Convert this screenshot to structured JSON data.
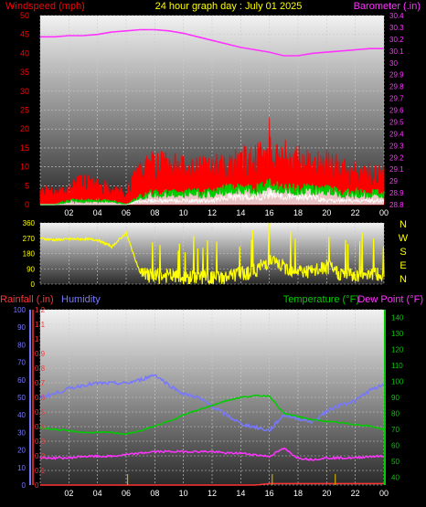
{
  "header": {
    "left": "Windspeed (mph)",
    "center": "24 hour graph day : July 01 2025",
    "right": "Barometer (.in)"
  },
  "colors": {
    "wind": "#ff0000",
    "gust_fill": "#e8e8e8",
    "wind_avg": "#00cc00",
    "barometer": "#ff33ff",
    "direction": "#ffff00",
    "humidity": "#7777ff",
    "temperature": "#00cc00",
    "dewpoint": "#ff33ff",
    "rainfall": "#ff3333",
    "rain_ticks": "#ccaa00",
    "grid": "#cccccc"
  },
  "bottom_labels": {
    "rainfall": "Rainfall (.in)",
    "humidity": "Humidity",
    "temperature": "Temperature (°F)",
    "dewpoint": "Dew Point (°F)"
  },
  "compass": [
    "N",
    "W",
    "S",
    "E",
    "N"
  ],
  "x_ticks": [
    "02",
    "04",
    "06",
    "08",
    "10",
    "12",
    "14",
    "16",
    "18",
    "20",
    "22",
    "00"
  ],
  "chart_data": [
    {
      "type": "area",
      "title": "24 hour graph day : July 01 2025",
      "ylabel": "Windspeed (mph)",
      "y2label": "Barometer (.in)",
      "ylim": [
        0,
        50
      ],
      "y_ticks": [
        "0",
        "5",
        "10",
        "15",
        "20",
        "25",
        "30",
        "35",
        "40",
        "45",
        "50"
      ],
      "y2lim": [
        28.8,
        30.4
      ],
      "y2_ticks": [
        "28.8",
        "28.9",
        "29",
        "29.1",
        "29.2",
        "29.3",
        "29.4",
        "29.5",
        "29.6",
        "29.7",
        "29.8",
        "29.9",
        "30",
        "30.1",
        "30.2",
        "30.3",
        "30.4"
      ],
      "x": [
        0,
        1,
        2,
        3,
        4,
        5,
        6,
        7,
        8,
        9,
        10,
        11,
        12,
        13,
        14,
        15,
        16,
        17,
        18,
        19,
        20,
        21,
        22,
        23,
        24
      ],
      "series": [
        {
          "values": [
            4,
            3,
            4,
            6,
            5,
            4,
            3,
            9,
            10,
            10,
            9,
            9,
            9,
            10,
            11,
            11,
            13,
            12,
            11,
            10,
            10,
            9,
            8,
            8,
            7
          ]
        },
        {
          "values": [
            0,
            0,
            1,
            1,
            1,
            1,
            0,
            2,
            3,
            3,
            3,
            3,
            3,
            4,
            4,
            4,
            5,
            4,
            4,
            4,
            4,
            3,
            3,
            3,
            3
          ]
        },
        {
          "values": [
            0,
            0,
            0,
            0,
            0,
            0,
            0,
            1,
            1,
            1,
            1,
            1,
            1,
            2,
            2,
            2,
            3,
            2,
            2,
            2,
            1,
            1,
            1,
            1,
            1
          ]
        },
        {
          "values": [
            30.22,
            30.22,
            30.23,
            30.23,
            30.24,
            30.26,
            30.27,
            30.28,
            30.28,
            30.27,
            30.25,
            30.22,
            30.19,
            30.16,
            30.13,
            30.11,
            30.09,
            30.06,
            30.06,
            30.08,
            30.09,
            30.1,
            30.11,
            30.12,
            30.12
          ]
        }
      ]
    },
    {
      "type": "line",
      "ylabel": "Direction",
      "ylim": [
        0,
        360
      ],
      "y_ticks": [
        "0",
        "90",
        "180",
        "270",
        "360"
      ],
      "x": [
        0,
        1,
        2,
        3,
        4,
        5,
        6,
        7,
        8,
        9,
        10,
        11,
        12,
        13,
        14,
        15,
        16,
        17,
        18,
        19,
        20,
        21,
        22,
        23,
        24
      ],
      "series": [
        {
          "values": [
            270,
            260,
            265,
            265,
            260,
            220,
            300,
            60,
            40,
            50,
            30,
            45,
            35,
            40,
            60,
            80,
            140,
            100,
            80,
            70,
            100,
            60,
            50,
            70,
            40
          ]
        }
      ]
    },
    {
      "type": "line",
      "y_ticks_rain": [
        "0",
        "0.1",
        "0.2",
        "0.3",
        "0.4",
        "0.5",
        "0.6",
        "0.7",
        "0.8",
        "0.9",
        "1",
        "1.1",
        "1.2"
      ],
      "ylim_rain": [
        0,
        1.2
      ],
      "y_ticks_humidity": [
        "0",
        "10",
        "20",
        "30",
        "40",
        "50",
        "60",
        "70",
        "80",
        "90",
        "100"
      ],
      "ylim_humidity": [
        0,
        100
      ],
      "y_ticks_temp": [
        "40",
        "50",
        "60",
        "70",
        "80",
        "90",
        "100",
        "110",
        "120",
        "130",
        "140"
      ],
      "ylim_temp": [
        35,
        145
      ],
      "x": [
        0,
        1,
        2,
        3,
        4,
        5,
        6,
        7,
        8,
        9,
        10,
        11,
        12,
        13,
        14,
        15,
        16,
        17,
        18,
        19,
        20,
        21,
        22,
        23,
        24
      ],
      "series": [
        {
          "name": "Humidity",
          "values": [
            50,
            52,
            55,
            57,
            58,
            58,
            58,
            60,
            63,
            57,
            52,
            50,
            45,
            40,
            35,
            33,
            31,
            40,
            38,
            36,
            42,
            46,
            48,
            54,
            57
          ]
        },
        {
          "name": "Temperature (°F)",
          "values": [
            71,
            70,
            69,
            68,
            68,
            68,
            67,
            69,
            72,
            75,
            79,
            82,
            85,
            88,
            90,
            91,
            91,
            80,
            78,
            76,
            75,
            74,
            73,
            72,
            70
          ]
        },
        {
          "name": "Dew Point (°F)",
          "values": [
            52,
            52,
            52,
            53,
            53,
            53,
            54,
            55,
            56,
            56,
            56,
            56,
            56,
            55,
            55,
            54,
            53,
            58,
            52,
            51,
            52,
            52,
            52,
            53,
            53
          ]
        },
        {
          "name": "Rainfall (.in)",
          "values": [
            0,
            0,
            0,
            0,
            0,
            0,
            0,
            0,
            0,
            0,
            0,
            0,
            0,
            0,
            0,
            0,
            0.01,
            0.01,
            0.01,
            0.01,
            0.01,
            0.01,
            0.01,
            0.01,
            0.01
          ]
        }
      ]
    }
  ]
}
